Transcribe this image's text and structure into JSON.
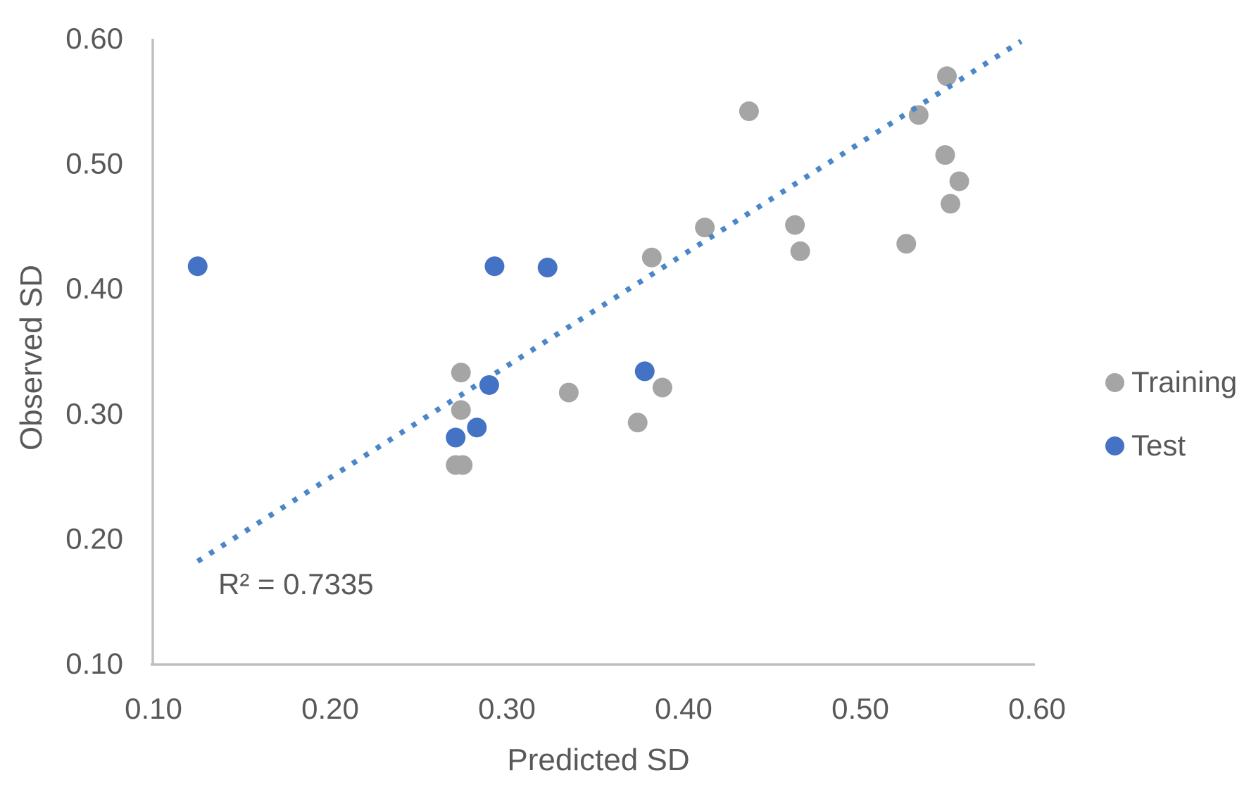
{
  "chart": {
    "y_axis_title": "Observed SD",
    "x_axis_title": "Predicted SD",
    "r_squared_label": "R² = 0.7335",
    "legend": [
      {
        "label": "Training",
        "color": "#A5A5A5"
      },
      {
        "label": "Test",
        "color": "#4472C4"
      }
    ]
  },
  "chart_data": {
    "type": "scatter",
    "title": "",
    "xlabel": "Predicted SD",
    "ylabel": "Observed SD",
    "xlim": [
      0.1,
      0.6
    ],
    "ylim": [
      0.1,
      0.6
    ],
    "x_ticks": [
      "0.10",
      "0.20",
      "0.30",
      "0.40",
      "0.50",
      "0.60"
    ],
    "y_ticks": [
      "0.10",
      "0.20",
      "0.30",
      "0.40",
      "0.50",
      "0.60"
    ],
    "grid": false,
    "legend_position": "right",
    "annotation": "R² = 0.7335",
    "series": [
      {
        "name": "Training",
        "color": "#A5A5A5",
        "points": [
          [
            0.274,
            0.333
          ],
          [
            0.274,
            0.303
          ],
          [
            0.271,
            0.259
          ],
          [
            0.275,
            0.259
          ],
          [
            0.335,
            0.317
          ],
          [
            0.382,
            0.425
          ],
          [
            0.388,
            0.321
          ],
          [
            0.374,
            0.293
          ],
          [
            0.412,
            0.449
          ],
          [
            0.437,
            0.542
          ],
          [
            0.463,
            0.451
          ],
          [
            0.466,
            0.43
          ],
          [
            0.526,
            0.436
          ],
          [
            0.533,
            0.539
          ],
          [
            0.549,
            0.57
          ],
          [
            0.548,
            0.507
          ],
          [
            0.556,
            0.486
          ],
          [
            0.551,
            0.468
          ]
        ]
      },
      {
        "name": "Test",
        "color": "#4472C4",
        "points": [
          [
            0.125,
            0.418
          ],
          [
            0.29,
            0.323
          ],
          [
            0.283,
            0.289
          ],
          [
            0.271,
            0.281
          ],
          [
            0.293,
            0.418
          ],
          [
            0.323,
            0.417
          ],
          [
            0.378,
            0.334
          ]
        ]
      }
    ],
    "trendline": {
      "style": "dotted",
      "color": "#4A86C8",
      "from": [
        0.125,
        0.182
      ],
      "to": [
        0.591,
        0.598
      ],
      "r_squared": 0.7335
    },
    "axis_color": "#BFBFBF",
    "tick_label_color": "#595959"
  }
}
